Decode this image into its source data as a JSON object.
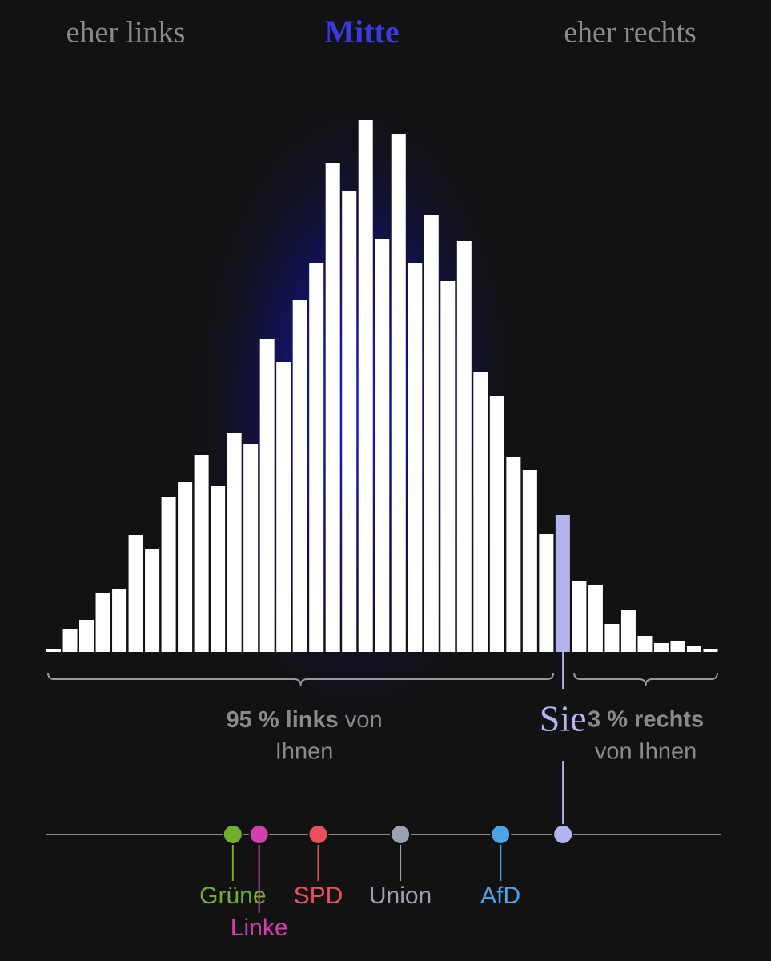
{
  "chart_data": {
    "type": "bar",
    "headings": {
      "left": "eher links",
      "center": "Mitte",
      "right": "eher rechts"
    },
    "values": [
      4,
      29,
      40,
      73,
      78,
      146,
      129,
      194,
      212,
      246,
      207,
      273,
      259,
      391,
      362,
      439,
      486,
      610,
      576,
      664,
      516,
      647,
      485,
      546,
      463,
      513,
      349,
      319,
      243,
      227,
      147,
      171,
      89,
      83,
      35,
      52,
      20,
      11,
      14,
      7,
      4
    ],
    "color": "#ffffff",
    "highlight_index": 31,
    "highlight_color": "#b3b3f0",
    "xlim": [
      0,
      41
    ],
    "ylim": [
      0,
      700
    ],
    "you": {
      "label": "Sie",
      "position": 31.5,
      "color": "#b3b3f0"
    },
    "summary_left": {
      "strong": "95 % links",
      "rest": "von",
      "line2": "Ihnen"
    },
    "summary_right": {
      "strong": "3 % rechts",
      "line2": "von Ihnen"
    },
    "parties": [
      {
        "name": "Grüne",
        "position": 11.4,
        "color": "#6fae2f"
      },
      {
        "name": "Linke",
        "position": 13.0,
        "color": "#d23fae"
      },
      {
        "name": "SPD",
        "position": 16.6,
        "color": "#e8505b"
      },
      {
        "name": "Union",
        "position": 21.6,
        "color": "#9ea1b4"
      },
      {
        "name": "AfD",
        "position": 27.7,
        "color": "#4ea3e6"
      }
    ]
  }
}
